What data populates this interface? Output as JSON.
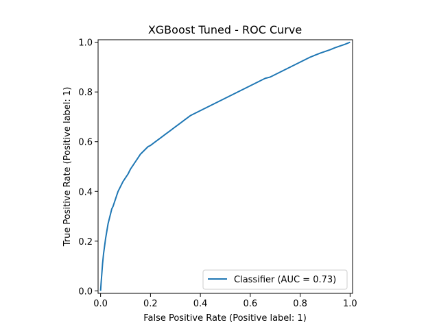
{
  "chart_data": {
    "type": "line",
    "title": "XGBoost Tuned - ROC Curve",
    "xlabel": "False Positive Rate (Positive label: 1)",
    "ylabel": "True Positive Rate (Positive label: 1)",
    "xlim": [
      -0.01,
      1.01
    ],
    "ylim": [
      -0.01,
      1.01
    ],
    "xticks": [
      0.0,
      0.2,
      0.4,
      0.6,
      0.8,
      1.0
    ],
    "yticks": [
      0.0,
      0.2,
      0.4,
      0.6,
      0.8,
      1.0
    ],
    "xtick_labels": [
      "0.0",
      "0.2",
      "0.4",
      "0.6",
      "0.8",
      "1.0"
    ],
    "ytick_labels": [
      "0.0",
      "0.2",
      "0.4",
      "0.6",
      "0.8",
      "1.0"
    ],
    "grid": false,
    "legend_position": "lower-right",
    "series": [
      {
        "name": "Classifier (AUC = 0.73)",
        "color": "#1f77b4",
        "x": [
          0.0,
          0.002,
          0.005,
          0.008,
          0.012,
          0.016,
          0.02,
          0.025,
          0.03,
          0.035,
          0.04,
          0.045,
          0.05,
          0.055,
          0.06,
          0.065,
          0.07,
          0.08,
          0.09,
          0.1,
          0.11,
          0.12,
          0.13,
          0.14,
          0.15,
          0.16,
          0.17,
          0.18,
          0.19,
          0.2,
          0.22,
          0.24,
          0.26,
          0.28,
          0.3,
          0.32,
          0.34,
          0.36,
          0.38,
          0.4,
          0.42,
          0.44,
          0.46,
          0.48,
          0.5,
          0.52,
          0.54,
          0.56,
          0.58,
          0.6,
          0.62,
          0.64,
          0.66,
          0.68,
          0.7,
          0.72,
          0.74,
          0.76,
          0.78,
          0.8,
          0.82,
          0.84,
          0.86,
          0.88,
          0.9,
          0.92,
          0.94,
          0.96,
          0.98,
          0.99,
          1.0
        ],
        "y": [
          0.0,
          0.03,
          0.07,
          0.11,
          0.15,
          0.18,
          0.21,
          0.24,
          0.27,
          0.29,
          0.31,
          0.33,
          0.34,
          0.355,
          0.37,
          0.385,
          0.4,
          0.42,
          0.44,
          0.455,
          0.47,
          0.49,
          0.505,
          0.52,
          0.535,
          0.55,
          0.56,
          0.57,
          0.58,
          0.585,
          0.6,
          0.615,
          0.63,
          0.645,
          0.66,
          0.675,
          0.69,
          0.705,
          0.715,
          0.725,
          0.735,
          0.745,
          0.755,
          0.765,
          0.775,
          0.785,
          0.795,
          0.805,
          0.815,
          0.825,
          0.835,
          0.845,
          0.855,
          0.86,
          0.87,
          0.88,
          0.89,
          0.9,
          0.91,
          0.92,
          0.93,
          0.94,
          0.948,
          0.956,
          0.963,
          0.97,
          0.978,
          0.985,
          0.992,
          0.996,
          1.0
        ]
      }
    ]
  }
}
